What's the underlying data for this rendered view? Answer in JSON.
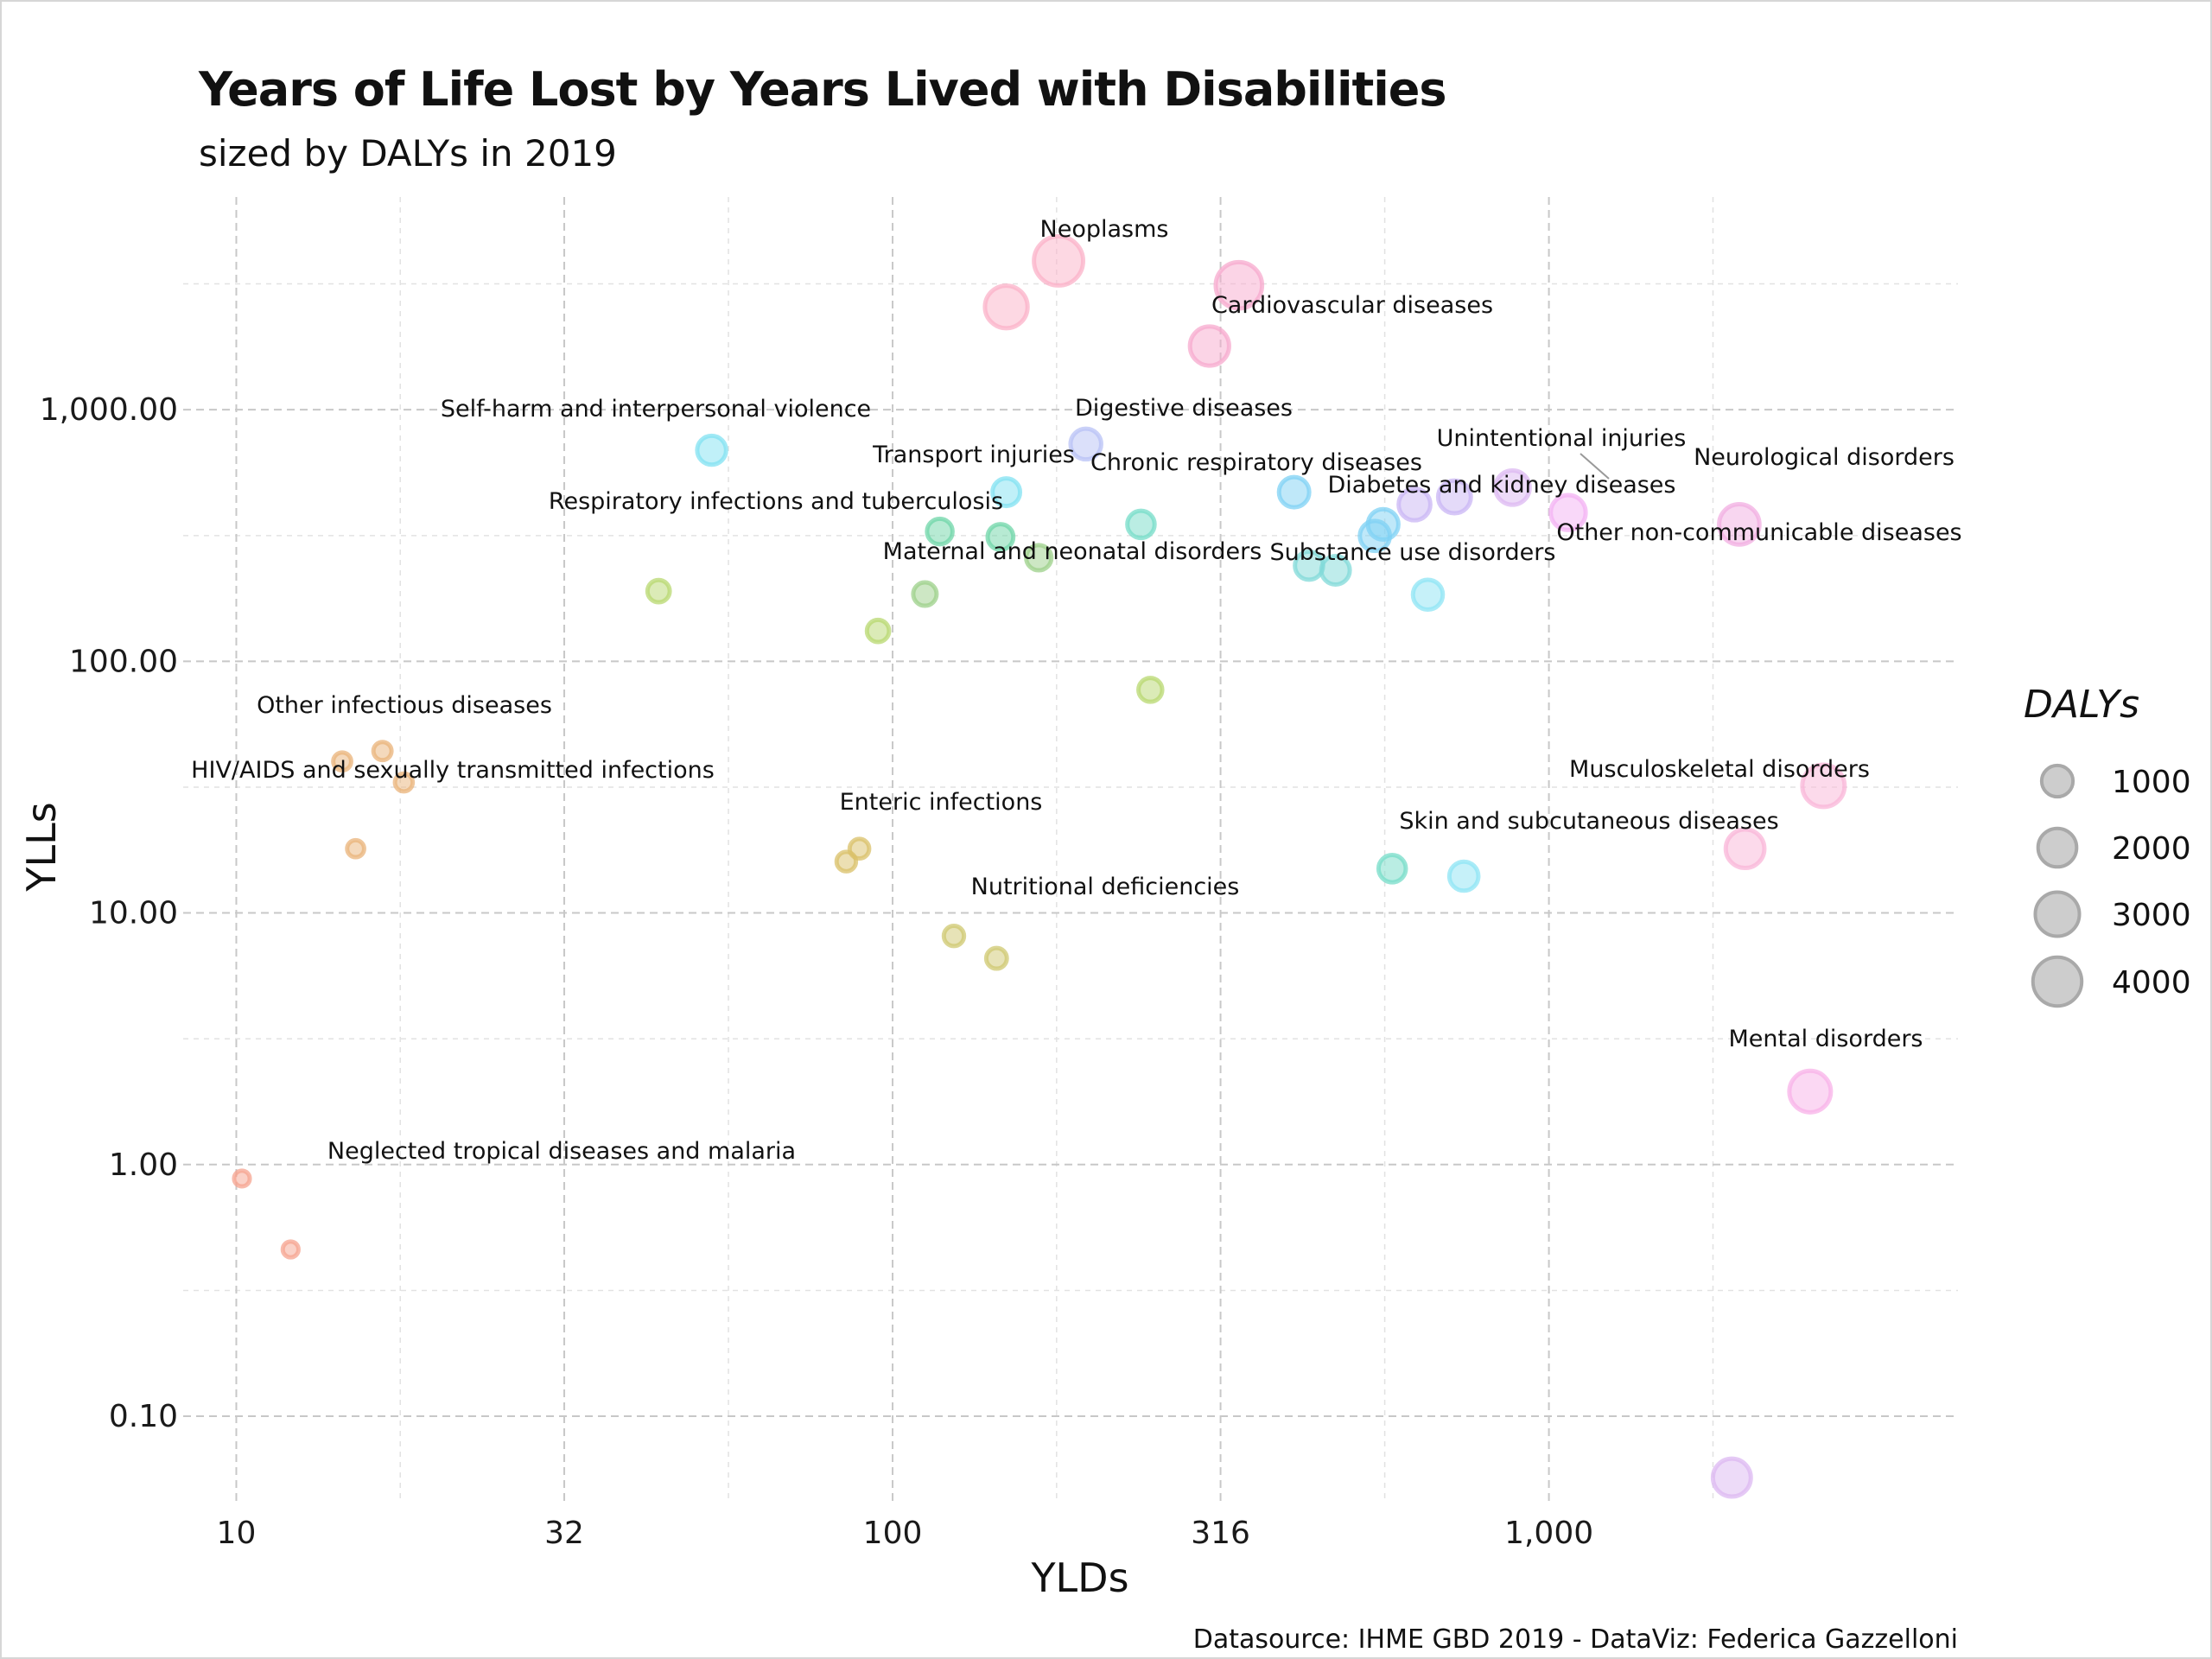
{
  "chart_data": {
    "type": "scatter",
    "title": "Years of Life Lost by Years Lived with Disabilities",
    "subtitle": "sized by DALYs in 2019",
    "xlabel": "YLDs",
    "ylabel": "YLLs",
    "x_scale": "log10",
    "y_scale": "log10",
    "xlim": [
      8.3,
      4200
    ],
    "ylim": [
      0.045,
      7000
    ],
    "x_ticks": [
      10,
      31.6,
      100,
      316,
      1000
    ],
    "x_tick_labels": [
      "10",
      "32",
      "100",
      "316",
      "1,000"
    ],
    "y_ticks": [
      0.1,
      1,
      10,
      100,
      1000
    ],
    "y_tick_labels": [
      "0.10",
      "1.00",
      "10.00",
      "100.00",
      "1,000.00"
    ],
    "grid": true,
    "legend": {
      "title": "DALYs",
      "placement": "right",
      "entries": [
        {
          "label": "1000",
          "value": 1000
        },
        {
          "label": "2000",
          "value": 2000
        },
        {
          "label": "3000",
          "value": 3000
        },
        {
          "label": "4000",
          "value": 4000
        }
      ]
    },
    "caption": "Datasource: IHME GBD 2019 - DataViz: Federica Gazzelloni",
    "colors": {
      "Neglected tropical diseases and malaria": "#f6a38f",
      "HIV/AIDS and sexually transmitted infections": "#eab37a",
      "Other infectious diseases": "#eab37a",
      "Enteric infections": "#d9c068",
      "Nutritional deficiencies": "#cfc870",
      "Respiratory infections and tuberculosis": "#b8d870",
      "Maternal and neonatal disorders": "#9cd08a",
      "Transport injuries": "#6fd6a8",
      "Self-harm and interpersonal violence": "#82e2f2",
      "Chronic respiratory diseases": "#75dcc8",
      "Digestive diseases": "#b8c2f6",
      "Substance use disorders": "#80dad8",
      "Diabetes and kidney diseases": "#7fd2f4",
      "Unintentional injuries": "#c9b6f4",
      "Cardiovascular diseases": "#f7aacd",
      "Neoplasms": "#fbb1c8",
      "Neurological disorders": "#f3b2f3",
      "Other non-communicable diseases": "#f2aee2",
      "Musculoskeletal disorders": "#fab5d8",
      "Skin and subcutaneous diseases": "#8ee4f4",
      "Mental disorders": "#f8b2e8",
      "Other": "#dcb8f2"
    },
    "points": [
      {
        "cause": "Neglected tropical diseases and malaria",
        "x": 10.2,
        "y": 0.88,
        "dalys": 11
      },
      {
        "cause": "Neglected tropical diseases and malaria",
        "x": 12.1,
        "y": 0.46,
        "dalys": 12
      },
      {
        "cause": "Other infectious diseases",
        "x": 14.5,
        "y": 40,
        "dalys": 55
      },
      {
        "cause": "Other infectious diseases",
        "x": 16.7,
        "y": 44,
        "dalys": 60
      },
      {
        "cause": "HIV/AIDS and sexually transmitted infections",
        "x": 18.0,
        "y": 33,
        "dalys": 51
      },
      {
        "cause": "HIV/AIDS and sexually transmitted infections",
        "x": 15.2,
        "y": 18,
        "dalys": 33
      },
      {
        "cause": "Respiratory infections and tuberculosis",
        "x": 44,
        "y": 190,
        "dalys": 234
      },
      {
        "cause": "Self-harm and interpersonal violence",
        "x": 53,
        "y": 690,
        "dalys": 743
      },
      {
        "cause": "Enteric infections",
        "x": 85,
        "y": 16,
        "dalys": 101
      },
      {
        "cause": "Enteric infections",
        "x": 89,
        "y": 18,
        "dalys": 107
      },
      {
        "cause": "Respiratory infections and tuberculosis",
        "x": 95,
        "y": 132,
        "dalys": 227
      },
      {
        "cause": "Maternal and neonatal disorders",
        "x": 112,
        "y": 185,
        "dalys": 297
      },
      {
        "cause": "Transport injuries",
        "x": 118,
        "y": 328,
        "dalys": 446
      },
      {
        "cause": "Nutritional deficiencies",
        "x": 124,
        "y": 8.1,
        "dalys": 132
      },
      {
        "cause": "Nutritional deficiencies",
        "x": 144,
        "y": 6.6,
        "dalys": 151
      },
      {
        "cause": "Transport injuries",
        "x": 146,
        "y": 312,
        "dalys": 458
      },
      {
        "cause": "Self-harm and interpersonal violence",
        "x": 149,
        "y": 470,
        "dalys": 619
      },
      {
        "cause": "Neoplasms",
        "x": 149,
        "y": 2560,
        "dalys": 2709
      },
      {
        "cause": "Maternal and neonatal disorders",
        "x": 167,
        "y": 258,
        "dalys": 425
      },
      {
        "cause": "Neoplasms",
        "x": 179,
        "y": 3900,
        "dalys": 4079
      },
      {
        "cause": "Digestive diseases",
        "x": 197,
        "y": 730,
        "dalys": 927
      },
      {
        "cause": "Chronic respiratory diseases",
        "x": 239,
        "y": 350,
        "dalys": 589
      },
      {
        "cause": "Respiratory infections and tuberculosis",
        "x": 247,
        "y": 77,
        "dalys": 324
      },
      {
        "cause": "Cardiovascular diseases",
        "x": 304,
        "y": 1790,
        "dalys": 2094
      },
      {
        "cause": "Cardiovascular diseases",
        "x": 337,
        "y": 3120,
        "dalys": 3457
      },
      {
        "cause": "Diabetes and kidney diseases",
        "x": 409,
        "y": 470,
        "dalys": 879
      },
      {
        "cause": "Substance use disorders",
        "x": 431,
        "y": 240,
        "dalys": 671
      },
      {
        "cause": "Substance use disorders",
        "x": 473,
        "y": 230,
        "dalys": 703
      },
      {
        "cause": "Diabetes and kidney diseases",
        "x": 543,
        "y": 315,
        "dalys": 858
      },
      {
        "cause": "Diabetes and kidney diseases",
        "x": 559,
        "y": 350,
        "dalys": 909
      },
      {
        "cause": "Chronic respiratory diseases",
        "x": 577,
        "y": 15,
        "dalys": 592
      },
      {
        "cause": "Unintentional injuries",
        "x": 624,
        "y": 420,
        "dalys": 1044
      },
      {
        "cause": "Skin and subcutaneous diseases",
        "x": 654,
        "y": 184,
        "dalys": 838
      },
      {
        "cause": "Unintentional injuries",
        "x": 718,
        "y": 450,
        "dalys": 1168
      },
      {
        "cause": "Skin and subcutaneous diseases",
        "x": 742,
        "y": 14,
        "dalys": 756
      },
      {
        "cause": "Other",
        "x": 880,
        "y": 490,
        "dalys": 1370
      },
      {
        "cause": "Neurological disorders",
        "x": 1070,
        "y": 390,
        "dalys": 1460
      },
      {
        "cause": "Other",
        "x": 1900,
        "y": 0.057,
        "dalys": 1900
      },
      {
        "cause": "Other non-communicable diseases",
        "x": 1950,
        "y": 350,
        "dalys": 2300
      },
      {
        "cause": "Musculoskeletal disorders",
        "x": 1990,
        "y": 18,
        "dalys": 2008
      },
      {
        "cause": "Mental disorders",
        "x": 2500,
        "y": 1.95,
        "dalys": 2502
      },
      {
        "cause": "Musculoskeletal disorders",
        "x": 2620,
        "y": 32,
        "dalys": 2652
      }
    ],
    "annotations": [
      {
        "text": "Neoplasms"
      },
      {
        "text": "Cardiovascular diseases"
      },
      {
        "text": "Self-harm and interpersonal violence"
      },
      {
        "text": "Digestive diseases"
      },
      {
        "text": "Transport injuries"
      },
      {
        "text": "Chronic respiratory diseases"
      },
      {
        "text": "Unintentional injuries"
      },
      {
        "text": "Neurological disorders"
      },
      {
        "text": "Respiratory infections and tuberculosis"
      },
      {
        "text": "Diabetes and kidney diseases"
      },
      {
        "text": "Maternal and neonatal disorders"
      },
      {
        "text": "Substance use disorders"
      },
      {
        "text": "Other non-communicable diseases"
      },
      {
        "text": "Other infectious diseases"
      },
      {
        "text": "HIV/AIDS and sexually transmitted infections"
      },
      {
        "text": "Enteric infections"
      },
      {
        "text": "Musculoskeletal disorders"
      },
      {
        "text": "Skin and subcutaneous diseases"
      },
      {
        "text": "Nutritional deficiencies"
      },
      {
        "text": "Mental disorders"
      },
      {
        "text": "Neglected tropical diseases and malaria"
      }
    ]
  }
}
